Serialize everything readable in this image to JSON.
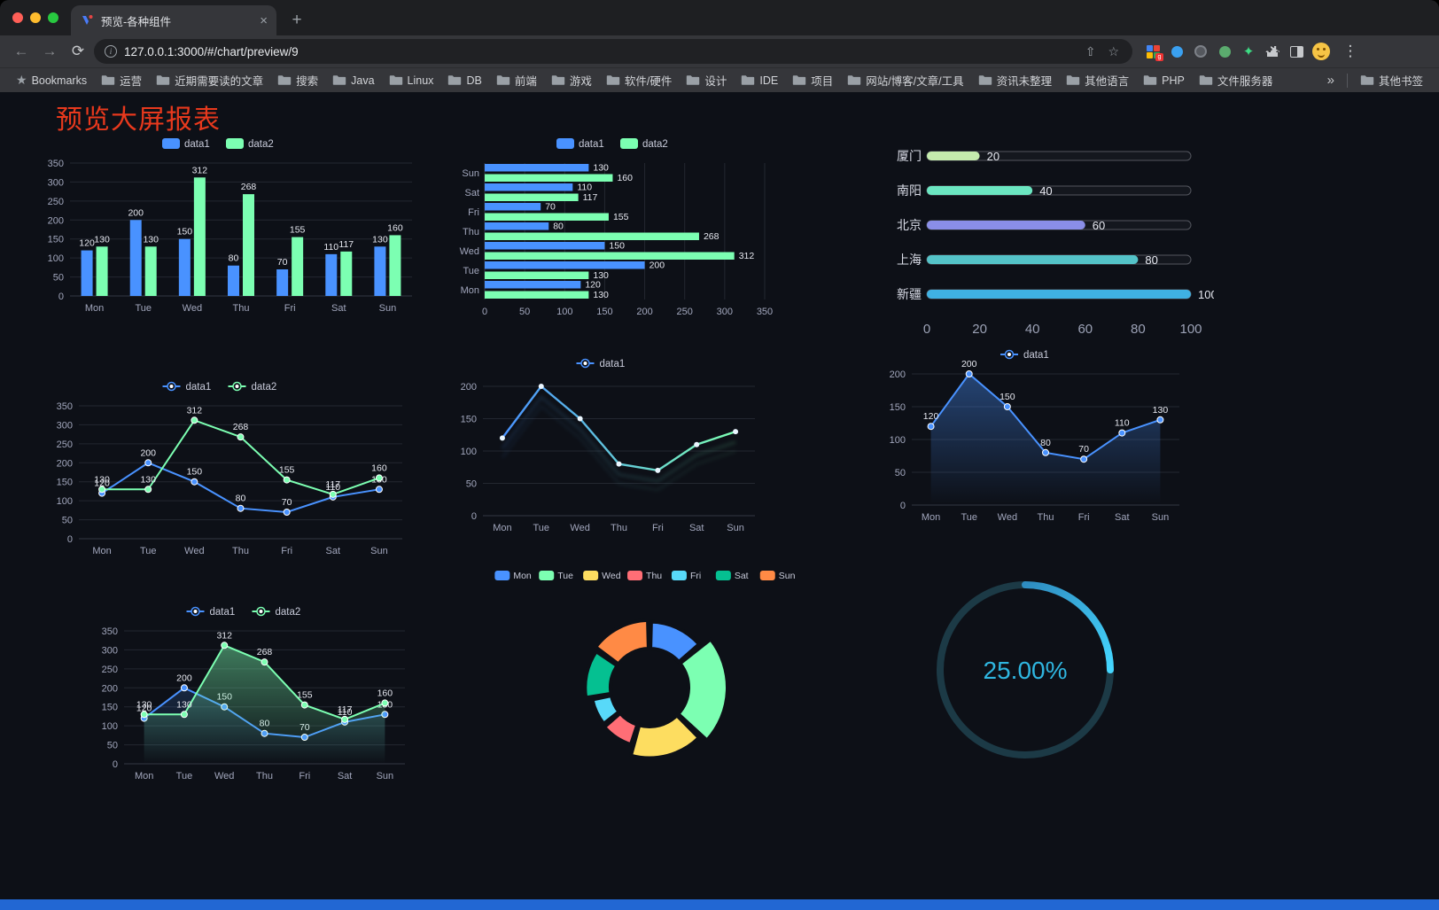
{
  "browser": {
    "tab_title": "预览-各种组件",
    "url": "127.0.0.1:3000/#/chart/preview/9",
    "bookmarks_label": "Bookmarks",
    "bookmark_folders": [
      "运营",
      "近期需要读的文章",
      "搜索",
      "Java",
      "Linux",
      "DB",
      "前端",
      "游戏",
      "软件/硬件",
      "设计",
      "IDE",
      "项目",
      "网站/博客/文章/工具",
      "资讯未整理",
      "其他语言",
      "PHP",
      "文件服务器"
    ],
    "other_bookmarks": "其他书签",
    "icons": {
      "back": "←",
      "forward": "→",
      "reload": "⟳",
      "tab_close": "×",
      "new_tab": "+",
      "menu": "⋮",
      "star": "☆",
      "share": "⇧",
      "overflow": "»",
      "info": "i",
      "bookmarks_star": "★",
      "ext_star": "✦"
    }
  },
  "page": {
    "title": "预览大屏报表"
  },
  "chart_data": [
    {
      "id": "bar-grouped",
      "type": "bar",
      "categories": [
        "Mon",
        "Tue",
        "Wed",
        "Thu",
        "Fri",
        "Sat",
        "Sun"
      ],
      "series": [
        {
          "name": "data1",
          "color": "#4992ff",
          "values": [
            120,
            200,
            150,
            80,
            70,
            110,
            130
          ]
        },
        {
          "name": "data2",
          "color": "#7cffb2",
          "values": [
            130,
            130,
            312,
            268,
            155,
            117,
            160
          ]
        }
      ],
      "ylim": [
        0,
        350
      ],
      "ytick": 50,
      "legend_position": "top",
      "show_labels": true
    },
    {
      "id": "bar-horizontal",
      "type": "bar-horizontal",
      "categories": [
        "Mon",
        "Tue",
        "Wed",
        "Thu",
        "Fri",
        "Sat",
        "Sun"
      ],
      "series": [
        {
          "name": "data1",
          "color": "#4992ff",
          "values": [
            120,
            200,
            150,
            80,
            70,
            110,
            130
          ]
        },
        {
          "name": "data2",
          "color": "#7cffb2",
          "values": [
            130,
            130,
            312,
            268,
            155,
            117,
            160
          ]
        }
      ],
      "xlim": [
        0,
        350
      ],
      "xtick": 50,
      "legend_position": "top",
      "show_labels": true
    },
    {
      "id": "city-progress",
      "type": "progress-bars",
      "max": 100,
      "items": [
        {
          "label": "厦门",
          "value": 20,
          "color": "#c4ebad"
        },
        {
          "label": "南阳",
          "value": 40,
          "color": "#6be6c1"
        },
        {
          "label": "北京",
          "value": 60,
          "color": "#8a8ee8"
        },
        {
          "label": "上海",
          "value": 80,
          "color": "#54c3c8"
        },
        {
          "label": "新疆",
          "value": 100,
          "color": "#3fb1e3"
        }
      ],
      "axis_ticks": [
        0,
        20,
        40,
        60,
        80,
        100
      ]
    },
    {
      "id": "line-two",
      "type": "line",
      "categories": [
        "Mon",
        "Tue",
        "Wed",
        "Thu",
        "Fri",
        "Sat",
        "Sun"
      ],
      "series": [
        {
          "name": "data1",
          "color": "#4992ff",
          "values": [
            120,
            200,
            150,
            80,
            70,
            110,
            130
          ]
        },
        {
          "name": "data2",
          "color": "#7cffb2",
          "values": [
            130,
            130,
            312,
            268,
            155,
            117,
            160
          ]
        }
      ],
      "ylim": [
        0,
        350
      ],
      "ytick": 50,
      "show_labels": true
    },
    {
      "id": "line-gradient",
      "type": "line-gradient",
      "categories": [
        "Mon",
        "Tue",
        "Wed",
        "Thu",
        "Fri",
        "Sat",
        "Sun"
      ],
      "series": [
        {
          "name": "data1",
          "color_start": "#4992ff",
          "color_end": "#7cffb2",
          "values": [
            120,
            200,
            150,
            80,
            70,
            110,
            130
          ]
        }
      ],
      "ylim": [
        0,
        200
      ],
      "ytick": 50,
      "show_labels": false
    },
    {
      "id": "area-single",
      "type": "line",
      "categories": [
        "Mon",
        "Tue",
        "Wed",
        "Thu",
        "Fri",
        "Sat",
        "Sun"
      ],
      "series": [
        {
          "name": "data1",
          "color": "#4992ff",
          "values": [
            120,
            200,
            150,
            80,
            70,
            110,
            130
          ],
          "area": true,
          "area_opacity": 0.4
        }
      ],
      "ylim": [
        0,
        200
      ],
      "ytick": 50,
      "show_labels": true
    },
    {
      "id": "line-area-two",
      "type": "line",
      "categories": [
        "Mon",
        "Tue",
        "Wed",
        "Thu",
        "Fri",
        "Sat",
        "Sun"
      ],
      "series": [
        {
          "name": "data1",
          "color": "#4992ff",
          "values": [
            120,
            200,
            150,
            80,
            70,
            110,
            130
          ],
          "area": true,
          "area_opacity": 0.18
        },
        {
          "name": "data2",
          "color": "#7cffb2",
          "values": [
            130,
            130,
            312,
            268,
            155,
            117,
            160
          ],
          "area": true,
          "area_opacity": 0.45
        }
      ],
      "ylim": [
        0,
        350
      ],
      "ytick": 50,
      "show_labels": true
    },
    {
      "id": "weekday-donut",
      "type": "pie",
      "rose": true,
      "items": [
        {
          "label": "Mon",
          "value": 120,
          "color": "#4992ff"
        },
        {
          "label": "Tue",
          "value": 200,
          "color": "#7cffb2"
        },
        {
          "label": "Wed",
          "value": 150,
          "color": "#fddd60"
        },
        {
          "label": "Thu",
          "value": 80,
          "color": "#ff6e76"
        },
        {
          "label": "Fri",
          "value": 70,
          "color": "#58d9f9"
        },
        {
          "label": "Sat",
          "value": 110,
          "color": "#05c091"
        },
        {
          "label": "Sun",
          "value": 130,
          "color": "#ff8a45"
        }
      ]
    },
    {
      "id": "gauge",
      "type": "gauge",
      "value": 25,
      "max": 100,
      "display": "25.00%",
      "color_start": "#2e8cc0",
      "color_end": "#45d6ff",
      "track_color": "#1c3a46",
      "text_color": "#2fb6e0"
    }
  ]
}
